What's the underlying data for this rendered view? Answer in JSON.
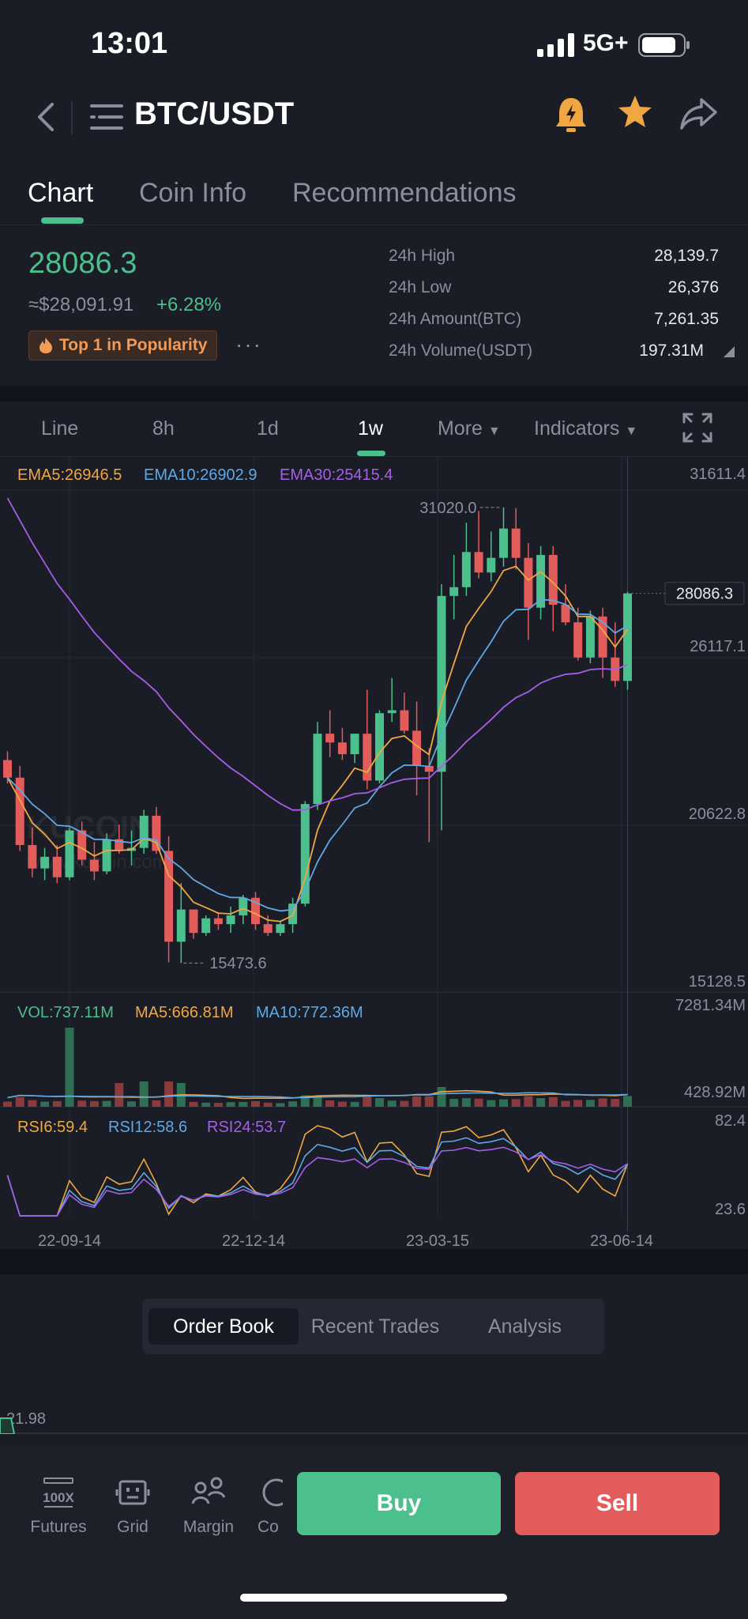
{
  "status": {
    "time": "13:01",
    "network": "5G+"
  },
  "header": {
    "pair": "BTC/USDT"
  },
  "tabs": [
    {
      "label": "Chart"
    },
    {
      "label": "Coin Info"
    },
    {
      "label": "Recommendations"
    }
  ],
  "ticker": {
    "price": "28086.3",
    "fiat": "≈$28,091.91",
    "change": "+6.28%",
    "badge": "Top 1 in Popularity",
    "more": "···",
    "stats": [
      {
        "label": "24h High",
        "value": "28,139.7"
      },
      {
        "label": "24h Low",
        "value": "26,376"
      },
      {
        "label": "24h Amount(BTC)",
        "value": "7,261.35"
      },
      {
        "label": "24h Volume(USDT)",
        "value": "197.31M"
      }
    ]
  },
  "toolbar": {
    "line": "Line",
    "h8": "8h",
    "d1": "1d",
    "w1": "1w",
    "more": "More",
    "indicators": "Indicators"
  },
  "legend": {
    "ema5": "EMA5:26946.5",
    "ema10": "EMA10:26902.9",
    "ema30": "EMA30:25415.4"
  },
  "vol_legend": {
    "vol": "VOL:737.11M",
    "ma5": "MA5:666.81M",
    "ma10": "MA10:772.36M"
  },
  "rsi_legend": {
    "r6": "RSI6:59.4",
    "r12": "RSI12:58.6",
    "r24": "RSI24:53.7"
  },
  "chart_labels": {
    "high_mark": "31020.0",
    "low_mark": "15473.6",
    "last_price": "28086.3",
    "y_ticks": [
      "31611.4",
      "26117.1",
      "20622.8",
      "15128.5"
    ],
    "vol_ticks": [
      "7281.34M",
      "428.92M"
    ],
    "rsi_ticks": [
      "82.4",
      "23.6"
    ],
    "x_ticks": [
      "22-09-14",
      "22-12-14",
      "23-03-15",
      "23-06-14"
    ]
  },
  "colors": {
    "up": "#4bbf8c",
    "down": "#e25c5c",
    "ema5": "#f0a742",
    "ema10": "#5fa8e6",
    "ema30": "#a45ee8"
  },
  "chart_data": {
    "type": "candlestick",
    "interval": "1w",
    "ylim": [
      15128.5,
      31611.4
    ],
    "candles": [
      [
        22400,
        22700,
        21600,
        21800
      ],
      [
        21800,
        22200,
        19300,
        19500
      ],
      [
        19500,
        20100,
        18400,
        18700
      ],
      [
        18700,
        19400,
        18300,
        19100
      ],
      [
        19100,
        19500,
        18200,
        18400
      ],
      [
        18400,
        20100,
        18300,
        20000
      ],
      [
        20000,
        20300,
        18800,
        19000
      ],
      [
        19000,
        19600,
        18300,
        18600
      ],
      [
        18600,
        19900,
        18500,
        19700
      ],
      [
        19700,
        20200,
        19200,
        19300
      ],
      [
        19300,
        20000,
        18800,
        19400
      ],
      [
        19400,
        20700,
        19200,
        20500
      ],
      [
        20500,
        20800,
        19200,
        19300
      ],
      [
        19300,
        19800,
        15500,
        16200
      ],
      [
        16200,
        18200,
        15473.6,
        17300
      ],
      [
        17300,
        17300,
        16300,
        16500
      ],
      [
        16500,
        17100,
        16400,
        17000
      ],
      [
        17000,
        17200,
        16600,
        16800
      ],
      [
        16800,
        17400,
        16500,
        17100
      ],
      [
        17100,
        17800,
        16800,
        17700
      ],
      [
        17700,
        17900,
        16600,
        16800
      ],
      [
        16800,
        17100,
        16400,
        16500
      ],
      [
        16500,
        16900,
        16400,
        16800
      ],
      [
        16800,
        17700,
        16500,
        17500
      ],
      [
        17500,
        21000,
        17400,
        20900
      ],
      [
        20900,
        23700,
        20700,
        23300
      ],
      [
        23300,
        24100,
        22500,
        23000
      ],
      [
        23000,
        23500,
        22400,
        22600
      ],
      [
        22600,
        23300,
        22300,
        23300
      ],
      [
        23300,
        24800,
        21400,
        21700
      ],
      [
        21700,
        24100,
        21600,
        24000
      ],
      [
        24000,
        25200,
        23700,
        24100
      ],
      [
        24100,
        24700,
        23300,
        23400
      ],
      [
        23400,
        24400,
        21200,
        22200
      ],
      [
        22200,
        22800,
        19600,
        22000
      ],
      [
        22000,
        28400,
        20000,
        28000
      ],
      [
        28000,
        29400,
        27200,
        28300
      ],
      [
        28300,
        30500,
        28000,
        29500
      ],
      [
        29500,
        30900,
        28600,
        28800
      ],
      [
        28800,
        30200,
        28500,
        29300
      ],
      [
        29300,
        31020,
        29000,
        30300
      ],
      [
        30300,
        31000,
        28900,
        29300
      ],
      [
        29300,
        29800,
        26500,
        27600
      ],
      [
        27600,
        29700,
        27200,
        29400
      ],
      [
        29400,
        29700,
        26800,
        27700
      ],
      [
        27700,
        28400,
        27000,
        27100
      ],
      [
        27100,
        27600,
        25800,
        25900
      ],
      [
        25900,
        27500,
        25700,
        27300
      ],
      [
        27300,
        27600,
        25200,
        25900
      ],
      [
        25900,
        27100,
        24900,
        25100
      ],
      [
        25100,
        28139.7,
        24800,
        28086.3
      ]
    ]
  },
  "order_tabs": {
    "book": "Order Book",
    "trades": "Recent Trades",
    "analysis": "Analysis"
  },
  "orderbook": {
    "value": "21.98"
  },
  "nav": {
    "futures": "Futures",
    "grid": "Grid",
    "margin": "Margin",
    "more": "Co",
    "futures_icon_text": "100X"
  },
  "actions": {
    "buy": "Buy",
    "sell": "Sell"
  }
}
